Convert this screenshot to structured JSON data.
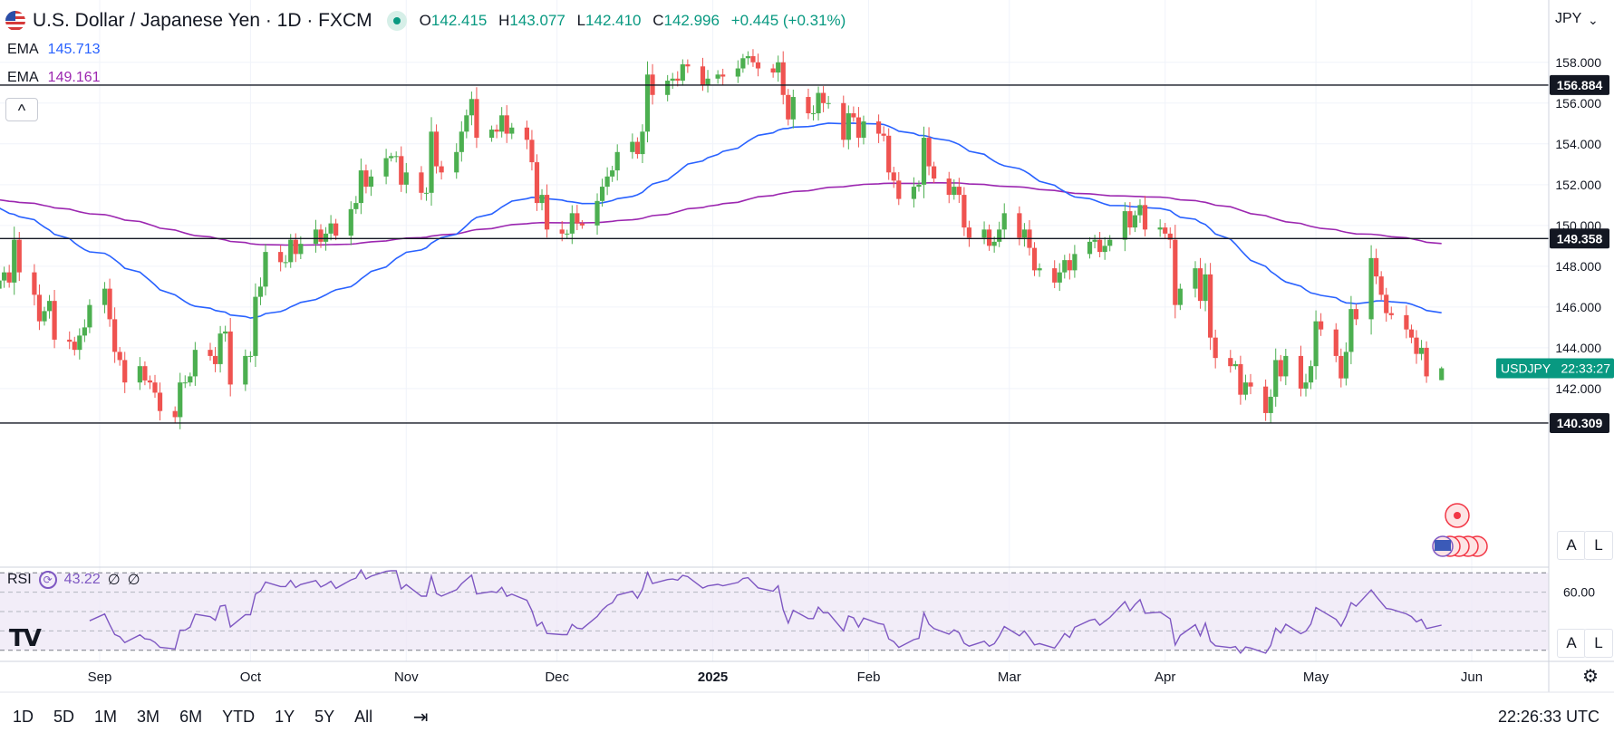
{
  "header": {
    "title": "U.S. Dollar / Japanese Yen · 1D · FXCM",
    "open_key": "O",
    "open": "142.415",
    "high_key": "H",
    "high": "143.077",
    "low_key": "L",
    "low": "142.410",
    "close_key": "C",
    "close": "142.996",
    "change": "+0.445 (+0.31%)",
    "flag_icon": "us-flag-icon"
  },
  "indicators": {
    "ema1": {
      "label": "EMA",
      "value": "145.713",
      "color": "#2962ff"
    },
    "ema2": {
      "label": "EMA",
      "value": "149.161",
      "color": "#9c27b0"
    },
    "rsi": {
      "label": "RSI",
      "value": "43.22",
      "extra1": "∅",
      "extra2": "∅",
      "color": "#7e57c2"
    }
  },
  "collapse_label": "^",
  "currency_label": "JPY",
  "symbol_tag": "USDJPY",
  "countdown": "22:33:27",
  "clock": "22:26:33 UTC",
  "logo_text": "TV",
  "auto_label": "A",
  "log_label": "L",
  "timeframes": [
    "1D",
    "5D",
    "1M",
    "3M",
    "6M",
    "YTD",
    "1Y",
    "5Y",
    "All"
  ],
  "colors": {
    "up": "#089981",
    "down": "#f23645",
    "bull_candle": "#4caf50",
    "bear_candle": "#ef5350",
    "rsi_band": "#ede7f6"
  },
  "chart_data": {
    "type": "candlestick",
    "symbol": "USDJPY",
    "y_ticks": [
      142,
      144,
      146,
      148,
      150,
      152,
      154,
      156,
      158
    ],
    "y_tick_labels": [
      "142.000",
      "144.000",
      "146.000",
      "148.000",
      "150.000",
      "152.000",
      "154.000",
      "156.000",
      "158.000"
    ],
    "x_labels": [
      {
        "label": "Sep",
        "date": "2024-09-01"
      },
      {
        "label": "Oct",
        "date": "2024-10-01"
      },
      {
        "label": "Nov",
        "date": "2024-11-01"
      },
      {
        "label": "Dec",
        "date": "2024-12-01"
      },
      {
        "label": "2025",
        "date": "2025-01-01"
      },
      {
        "label": "Feb",
        "date": "2025-02-01"
      },
      {
        "label": "Mar",
        "date": "2025-03-01"
      },
      {
        "label": "Apr",
        "date": "2025-04-01"
      },
      {
        "label": "May",
        "date": "2025-05-01"
      },
      {
        "label": "Jun",
        "date": "2025-06-01"
      }
    ],
    "horizontal_levels": [
      {
        "value": 156.884,
        "label": "156.884"
      },
      {
        "value": 149.358,
        "label": "149.358"
      },
      {
        "value": 140.309,
        "label": "140.309"
      }
    ],
    "closes": [
      {
        "date": "2024-08-12",
        "close": 147.3
      },
      {
        "date": "2024-08-13",
        "close": 147.7
      },
      {
        "date": "2024-08-14",
        "close": 147.2
      },
      {
        "date": "2024-08-15",
        "close": 149.3
      },
      {
        "date": "2024-08-16",
        "close": 147.7
      },
      {
        "date": "2024-08-19",
        "close": 146.6
      },
      {
        "date": "2024-08-20",
        "close": 145.3
      },
      {
        "date": "2024-08-21",
        "close": 145.8
      },
      {
        "date": "2024-08-22",
        "close": 146.3
      },
      {
        "date": "2024-08-23",
        "close": 144.4
      },
      {
        "date": "2024-08-26",
        "close": 144.3
      },
      {
        "date": "2024-08-27",
        "close": 143.9
      },
      {
        "date": "2024-08-28",
        "close": 144.6
      },
      {
        "date": "2024-08-29",
        "close": 145.0
      },
      {
        "date": "2024-08-30",
        "close": 146.1
      },
      {
        "date": "2024-09-02",
        "close": 146.9
      },
      {
        "date": "2024-09-03",
        "close": 145.4
      },
      {
        "date": "2024-09-04",
        "close": 143.8
      },
      {
        "date": "2024-09-05",
        "close": 143.4
      },
      {
        "date": "2024-09-06",
        "close": 142.3
      },
      {
        "date": "2024-09-09",
        "close": 143.1
      },
      {
        "date": "2024-09-10",
        "close": 142.4
      },
      {
        "date": "2024-09-11",
        "close": 142.3
      },
      {
        "date": "2024-09-12",
        "close": 141.8
      },
      {
        "date": "2024-09-13",
        "close": 140.9
      },
      {
        "date": "2024-09-16",
        "close": 140.6
      },
      {
        "date": "2024-09-17",
        "close": 142.3
      },
      {
        "date": "2024-09-18",
        "close": 142.3
      },
      {
        "date": "2024-09-19",
        "close": 142.6
      },
      {
        "date": "2024-09-20",
        "close": 143.9
      },
      {
        "date": "2024-09-23",
        "close": 143.6
      },
      {
        "date": "2024-09-24",
        "close": 143.2
      },
      {
        "date": "2024-09-25",
        "close": 144.7
      },
      {
        "date": "2024-09-26",
        "close": 144.8
      },
      {
        "date": "2024-09-27",
        "close": 142.2
      },
      {
        "date": "2024-09-30",
        "close": 143.6
      },
      {
        "date": "2024-10-01",
        "close": 143.6
      },
      {
        "date": "2024-10-02",
        "close": 146.5
      },
      {
        "date": "2024-10-03",
        "close": 147.0
      },
      {
        "date": "2024-10-04",
        "close": 148.7
      },
      {
        "date": "2024-10-07",
        "close": 148.2
      },
      {
        "date": "2024-10-08",
        "close": 148.2
      },
      {
        "date": "2024-10-09",
        "close": 149.3
      },
      {
        "date": "2024-10-10",
        "close": 148.6
      },
      {
        "date": "2024-10-11",
        "close": 149.1
      },
      {
        "date": "2024-10-14",
        "close": 149.8
      },
      {
        "date": "2024-10-15",
        "close": 149.2
      },
      {
        "date": "2024-10-16",
        "close": 149.6
      },
      {
        "date": "2024-10-17",
        "close": 150.1
      },
      {
        "date": "2024-10-18",
        "close": 149.5
      },
      {
        "date": "2024-10-21",
        "close": 150.8
      },
      {
        "date": "2024-10-22",
        "close": 151.1
      },
      {
        "date": "2024-10-23",
        "close": 152.7
      },
      {
        "date": "2024-10-24",
        "close": 151.9
      },
      {
        "date": "2024-10-25",
        "close": 152.4
      },
      {
        "date": "2024-10-28",
        "close": 153.3
      },
      {
        "date": "2024-10-29",
        "close": 153.4
      },
      {
        "date": "2024-10-30",
        "close": 153.4
      },
      {
        "date": "2024-10-31",
        "close": 152.0
      },
      {
        "date": "2024-11-01",
        "close": 152.6
      },
      {
        "date": "2024-11-04",
        "close": 151.6
      },
      {
        "date": "2024-11-05",
        "close": 151.6
      },
      {
        "date": "2024-11-06",
        "close": 154.6
      },
      {
        "date": "2024-11-07",
        "close": 152.9
      },
      {
        "date": "2024-11-08",
        "close": 152.6
      },
      {
        "date": "2024-11-11",
        "close": 153.6
      },
      {
        "date": "2024-11-12",
        "close": 154.6
      },
      {
        "date": "2024-11-13",
        "close": 155.4
      },
      {
        "date": "2024-11-14",
        "close": 156.2
      },
      {
        "date": "2024-11-15",
        "close": 154.3
      },
      {
        "date": "2024-11-18",
        "close": 154.7
      },
      {
        "date": "2024-11-19",
        "close": 154.6
      },
      {
        "date": "2024-11-20",
        "close": 155.4
      },
      {
        "date": "2024-11-21",
        "close": 154.5
      },
      {
        "date": "2024-11-22",
        "close": 154.8
      },
      {
        "date": "2024-11-25",
        "close": 154.2
      },
      {
        "date": "2024-11-26",
        "close": 153.1
      },
      {
        "date": "2024-11-27",
        "close": 151.1
      },
      {
        "date": "2024-11-28",
        "close": 151.5
      },
      {
        "date": "2024-11-29",
        "close": 149.8
      },
      {
        "date": "2024-12-02",
        "close": 149.6
      },
      {
        "date": "2024-12-03",
        "close": 149.6
      },
      {
        "date": "2024-12-04",
        "close": 150.6
      },
      {
        "date": "2024-12-05",
        "close": 150.1
      },
      {
        "date": "2024-12-06",
        "close": 150.0
      },
      {
        "date": "2024-12-09",
        "close": 151.2
      },
      {
        "date": "2024-12-10",
        "close": 151.9
      },
      {
        "date": "2024-12-11",
        "close": 152.4
      },
      {
        "date": "2024-12-12",
        "close": 152.7
      },
      {
        "date": "2024-12-13",
        "close": 153.6
      },
      {
        "date": "2024-12-16",
        "close": 154.1
      },
      {
        "date": "2024-12-17",
        "close": 153.5
      },
      {
        "date": "2024-12-18",
        "close": 154.6
      },
      {
        "date": "2024-12-19",
        "close": 157.4
      },
      {
        "date": "2024-12-20",
        "close": 156.4
      },
      {
        "date": "2024-12-23",
        "close": 157.1
      },
      {
        "date": "2024-12-24",
        "close": 157.2
      },
      {
        "date": "2024-12-25",
        "close": 157.1
      },
      {
        "date": "2024-12-26",
        "close": 157.9
      },
      {
        "date": "2024-12-27",
        "close": 157.8
      },
      {
        "date": "2024-12-30",
        "close": 156.9
      },
      {
        "date": "2024-12-31",
        "close": 157.2
      },
      {
        "date": "2025-01-02",
        "close": 157.4
      },
      {
        "date": "2025-01-03",
        "close": 157.3
      },
      {
        "date": "2025-01-06",
        "close": 157.7
      },
      {
        "date": "2025-01-07",
        "close": 158.2
      },
      {
        "date": "2025-01-08",
        "close": 158.3
      },
      {
        "date": "2025-01-09",
        "close": 158.0
      },
      {
        "date": "2025-01-10",
        "close": 157.7
      },
      {
        "date": "2025-01-13",
        "close": 157.5
      },
      {
        "date": "2025-01-14",
        "close": 158.0
      },
      {
        "date": "2025-01-15",
        "close": 156.4
      },
      {
        "date": "2025-01-16",
        "close": 155.2
      },
      {
        "date": "2025-01-17",
        "close": 156.3
      },
      {
        "date": "2025-01-20",
        "close": 155.5
      },
      {
        "date": "2025-01-21",
        "close": 155.5
      },
      {
        "date": "2025-01-22",
        "close": 156.5
      },
      {
        "date": "2025-01-23",
        "close": 156.0
      },
      {
        "date": "2025-01-24",
        "close": 156.0
      },
      {
        "date": "2025-01-27",
        "close": 154.2
      },
      {
        "date": "2025-01-28",
        "close": 155.5
      },
      {
        "date": "2025-01-29",
        "close": 155.3
      },
      {
        "date": "2025-01-30",
        "close": 154.3
      },
      {
        "date": "2025-01-31",
        "close": 155.1
      },
      {
        "date": "2025-02-03",
        "close": 154.5
      },
      {
        "date": "2025-02-04",
        "close": 154.4
      },
      {
        "date": "2025-02-05",
        "close": 152.6
      },
      {
        "date": "2025-02-06",
        "close": 152.2
      },
      {
        "date": "2025-02-07",
        "close": 151.3
      },
      {
        "date": "2025-02-10",
        "close": 151.9
      },
      {
        "date": "2025-02-11",
        "close": 152.0
      },
      {
        "date": "2025-02-12",
        "close": 154.3
      },
      {
        "date": "2025-02-13",
        "close": 152.9
      },
      {
        "date": "2025-02-14",
        "close": 152.3
      },
      {
        "date": "2025-02-17",
        "close": 151.5
      },
      {
        "date": "2025-02-18",
        "close": 151.9
      },
      {
        "date": "2025-02-19",
        "close": 151.5
      },
      {
        "date": "2025-02-20",
        "close": 149.9
      },
      {
        "date": "2025-02-21",
        "close": 149.4
      },
      {
        "date": "2025-02-24",
        "close": 149.8
      },
      {
        "date": "2025-02-25",
        "close": 149.0
      },
      {
        "date": "2025-02-26",
        "close": 149.2
      },
      {
        "date": "2025-02-27",
        "close": 149.8
      },
      {
        "date": "2025-02-28",
        "close": 150.6
      },
      {
        "date": "2025-03-03",
        "close": 149.4
      },
      {
        "date": "2025-03-04",
        "close": 149.8
      },
      {
        "date": "2025-03-05",
        "close": 148.9
      },
      {
        "date": "2025-03-06",
        "close": 147.8
      },
      {
        "date": "2025-03-07",
        "close": 147.9
      },
      {
        "date": "2025-03-10",
        "close": 147.2
      },
      {
        "date": "2025-03-11",
        "close": 147.7
      },
      {
        "date": "2025-03-12",
        "close": 148.3
      },
      {
        "date": "2025-03-13",
        "close": 147.8
      },
      {
        "date": "2025-03-14",
        "close": 148.6
      },
      {
        "date": "2025-03-17",
        "close": 149.2
      },
      {
        "date": "2025-03-18",
        "close": 149.3
      },
      {
        "date": "2025-03-19",
        "close": 148.7
      },
      {
        "date": "2025-03-20",
        "close": 149.0
      },
      {
        "date": "2025-03-21",
        "close": 149.3
      },
      {
        "date": "2025-03-24",
        "close": 150.7
      },
      {
        "date": "2025-03-25",
        "close": 149.9
      },
      {
        "date": "2025-03-26",
        "close": 150.5
      },
      {
        "date": "2025-03-27",
        "close": 151.0
      },
      {
        "date": "2025-03-28",
        "close": 149.8
      },
      {
        "date": "2025-03-31",
        "close": 149.9
      },
      {
        "date": "2025-04-01",
        "close": 149.6
      },
      {
        "date": "2025-04-02",
        "close": 149.3
      },
      {
        "date": "2025-04-03",
        "close": 146.1
      },
      {
        "date": "2025-04-04",
        "close": 146.9
      },
      {
        "date": "2025-04-07",
        "close": 147.9
      },
      {
        "date": "2025-04-08",
        "close": 146.3
      },
      {
        "date": "2025-04-09",
        "close": 147.6
      },
      {
        "date": "2025-04-10",
        "close": 144.5
      },
      {
        "date": "2025-04-11",
        "close": 143.5
      },
      {
        "date": "2025-04-14",
        "close": 143.1
      },
      {
        "date": "2025-04-15",
        "close": 143.2
      },
      {
        "date": "2025-04-16",
        "close": 141.7
      },
      {
        "date": "2025-04-17",
        "close": 142.3
      },
      {
        "date": "2025-04-18",
        "close": 142.1
      },
      {
        "date": "2025-04-21",
        "close": 140.8
      },
      {
        "date": "2025-04-22",
        "close": 141.6
      },
      {
        "date": "2025-04-23",
        "close": 143.4
      },
      {
        "date": "2025-04-24",
        "close": 142.6
      },
      {
        "date": "2025-04-25",
        "close": 143.6
      },
      {
        "date": "2025-04-28",
        "close": 142.0
      },
      {
        "date": "2025-04-29",
        "close": 142.3
      },
      {
        "date": "2025-04-30",
        "close": 143.1
      },
      {
        "date": "2025-05-01",
        "close": 145.3
      },
      {
        "date": "2025-05-02",
        "close": 144.9
      },
      {
        "date": "2025-05-05",
        "close": 143.6
      },
      {
        "date": "2025-05-06",
        "close": 142.5
      },
      {
        "date": "2025-05-07",
        "close": 143.8
      },
      {
        "date": "2025-05-08",
        "close": 145.9
      },
      {
        "date": "2025-05-09",
        "close": 145.4
      },
      {
        "date": "2025-05-12",
        "close": 148.4
      },
      {
        "date": "2025-05-13",
        "close": 147.5
      },
      {
        "date": "2025-05-14",
        "close": 146.6
      },
      {
        "date": "2025-05-15",
        "close": 145.7
      },
      {
        "date": "2025-05-16",
        "close": 145.6
      },
      {
        "date": "2025-05-19",
        "close": 144.9
      },
      {
        "date": "2025-05-20",
        "close": 144.5
      },
      {
        "date": "2025-05-21",
        "close": 143.7
      },
      {
        "date": "2025-05-22",
        "close": 144.0
      },
      {
        "date": "2025-05-23",
        "close": 142.6
      },
      {
        "date": "2025-05-26",
        "close": 142.996
      }
    ],
    "last_candle": {
      "date": "2025-05-26",
      "open": 142.415,
      "high": 143.077,
      "low": 142.41,
      "close": 142.996
    },
    "rsi_levels": [
      70,
      60,
      50,
      40,
      30
    ],
    "rsi_tick_labels": [
      "60.00"
    ],
    "rsi_range": [
      28,
      72
    ],
    "grid": true
  }
}
